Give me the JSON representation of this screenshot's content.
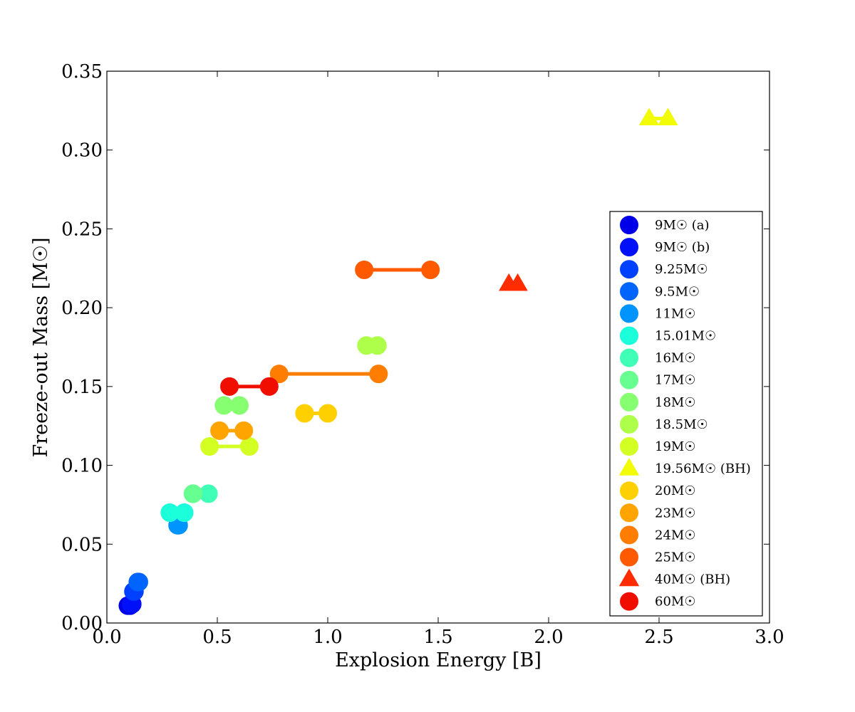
{
  "chart_data": {
    "type": "scatter",
    "xlabel": "Explosion Energy [B]",
    "ylabel": "Freeze-out Mass [M☉]",
    "xlim": [
      0.0,
      3.0
    ],
    "ylim": [
      0.0,
      0.35
    ],
    "xticks": [
      "0.0",
      "0.5",
      "1.0",
      "1.5",
      "2.0",
      "2.5",
      "3.0"
    ],
    "yticks": [
      "0.00",
      "0.05",
      "0.10",
      "0.15",
      "0.20",
      "0.25",
      "0.30",
      "0.35"
    ],
    "legend_position": "lower-right",
    "series": [
      {
        "name": "9M☉ (a)",
        "marker": "circle",
        "color": "#0000e8",
        "connected": true,
        "points": [
          [
            0.095,
            0.011
          ],
          [
            0.105,
            0.011
          ]
        ]
      },
      {
        "name": "9M☉ (b)",
        "marker": "circle",
        "color": "#0010f8",
        "connected": true,
        "points": [
          [
            0.11,
            0.012
          ],
          [
            0.115,
            0.012
          ]
        ]
      },
      {
        "name": "9.25M☉",
        "marker": "circle",
        "color": "#0040ff",
        "connected": true,
        "points": [
          [
            0.12,
            0.02
          ],
          [
            0.125,
            0.02
          ]
        ]
      },
      {
        "name": "9.5M☉",
        "marker": "circle",
        "color": "#0064ff",
        "connected": true,
        "points": [
          [
            0.14,
            0.026
          ],
          [
            0.145,
            0.026
          ]
        ]
      },
      {
        "name": "11M☉",
        "marker": "circle",
        "color": "#0094ff",
        "connected": true,
        "points": [
          [
            0.32,
            0.062
          ],
          [
            0.325,
            0.062
          ]
        ]
      },
      {
        "name": "15.01M☉",
        "marker": "circle",
        "color": "#1cffdb",
        "connected": true,
        "points": [
          [
            0.285,
            0.07
          ],
          [
            0.35,
            0.07
          ]
        ]
      },
      {
        "name": "16M☉",
        "marker": "circle",
        "color": "#40ffb7",
        "connected": true,
        "points": [
          [
            0.39,
            0.082
          ],
          [
            0.46,
            0.082
          ]
        ]
      },
      {
        "name": "17M☉",
        "marker": "circle",
        "color": "#66ff90",
        "connected": true,
        "points": [
          [
            0.39,
            0.082
          ],
          [
            0.39,
            0.082
          ]
        ]
      },
      {
        "name": "18M☉",
        "marker": "circle",
        "color": "#86ff70",
        "connected": true,
        "points": [
          [
            0.53,
            0.138
          ],
          [
            0.6,
            0.138
          ]
        ]
      },
      {
        "name": "18.5M☉",
        "marker": "circle",
        "color": "#adff4a",
        "connected": true,
        "points": [
          [
            1.175,
            0.176
          ],
          [
            1.225,
            0.176
          ]
        ]
      },
      {
        "name": "19M☉",
        "marker": "circle",
        "color": "#d4ff23",
        "connected": true,
        "points": [
          [
            0.465,
            0.112
          ],
          [
            0.645,
            0.112
          ]
        ]
      },
      {
        "name": "19.56M☉ (BH)",
        "marker": "triangle",
        "color": "#f1fc06",
        "connected": true,
        "points": [
          [
            2.455,
            0.32
          ],
          [
            2.54,
            0.32
          ]
        ]
      },
      {
        "name": "20M☉",
        "marker": "circle",
        "color": "#ffd000",
        "connected": true,
        "points": [
          [
            0.895,
            0.133
          ],
          [
            1.0,
            0.133
          ]
        ]
      },
      {
        "name": "23M☉",
        "marker": "circle",
        "color": "#ffa400",
        "connected": true,
        "points": [
          [
            0.51,
            0.122
          ],
          [
            0.62,
            0.122
          ]
        ]
      },
      {
        "name": "24M☉",
        "marker": "circle",
        "color": "#ff7d00",
        "connected": true,
        "points": [
          [
            0.78,
            0.158
          ],
          [
            1.23,
            0.158
          ]
        ]
      },
      {
        "name": "25M☉",
        "marker": "circle",
        "color": "#ff5a00",
        "connected": true,
        "points": [
          [
            1.165,
            0.224
          ],
          [
            1.465,
            0.224
          ]
        ]
      },
      {
        "name": "40M☉ (BH)",
        "marker": "triangle",
        "color": "#ff2c00",
        "connected": true,
        "points": [
          [
            1.82,
            0.215
          ],
          [
            1.86,
            0.215
          ]
        ]
      },
      {
        "name": "60M☉",
        "marker": "circle",
        "color": "#f00e00",
        "connected": true,
        "points": [
          [
            0.555,
            0.15
          ],
          [
            0.735,
            0.15
          ]
        ]
      }
    ]
  }
}
